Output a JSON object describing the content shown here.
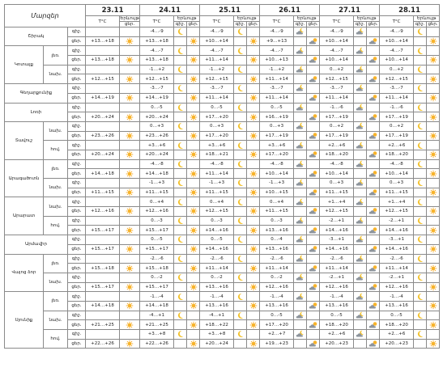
{
  "header": {
    "title": "Մարզեր",
    "dates": [
      "23.11",
      "24.11",
      "25.11",
      "26.11",
      "27.11",
      "28.11"
    ],
    "temp": "T°C",
    "phenomenon": "Երևույթ",
    "night": "գիշ.",
    "day": "ցեր."
  },
  "regions": [
    {
      "name": "Շիրակ",
      "parts": [
        {
          "night": [
            "-4…-9",
            "-4…-9",
            "-4…-9",
            "-4…-9",
            "-4…-9"
          ],
          "day": [
            "+13…+18",
            "+13…+18",
            "+10…+14",
            "+9…+13",
            "+10…+14",
            "+10…+14"
          ]
        }
      ]
    },
    {
      "name": "Կոտայք",
      "parts": [
        {
          "zone": "լեռ.",
          "night": [
            "-4…-7",
            "-4…-7",
            "-4…-7",
            "-4…-7",
            "-4…-7"
          ],
          "day": [
            "+13…+18",
            "+13…+18",
            "+11…+14",
            "+10…+13",
            "+10…+14",
            "+10…+14"
          ]
        },
        {
          "zone": "նախ.",
          "night": [
            "-1…+2",
            "-1…+2",
            "-1…+2",
            "0…+2",
            "0…+2"
          ],
          "day": [
            "+12…+15",
            "+12…+15",
            "+12…+15",
            "+11…+14",
            "+12…+15",
            "+12…+15"
          ]
        }
      ]
    },
    {
      "name": "Գեղարքունիք",
      "parts": [
        {
          "night": [
            "-3…-7",
            "-3…-7",
            "-3…-7",
            "-3…-7",
            "-3…-7"
          ],
          "day": [
            "+14…+19",
            "+14…+19",
            "+11…+14",
            "+11…+14",
            "+11…+14",
            "+11…+14"
          ]
        }
      ]
    },
    {
      "name": "Լոռի",
      "parts": [
        {
          "night": [
            "0…-5",
            "0…-5",
            "0…-5",
            "-1…-6",
            "-1…-6"
          ],
          "day": [
            "+20…+24",
            "+20…+24",
            "+17…+20",
            "+16…+19",
            "+17…+19",
            "+17…+19"
          ]
        }
      ]
    },
    {
      "name": "Տավուշ",
      "parts": [
        {
          "zone": "նախ.",
          "night": [
            "0…+3",
            "0…+3",
            "0…+3",
            "0…+2",
            "0…+2"
          ],
          "day": [
            "+23…+26",
            "+23…+26",
            "+17…+20",
            "+17…+19",
            "+17…+19",
            "+17…+19"
          ]
        },
        {
          "zone": "հով.",
          "night": [
            "+3…+6",
            "+3…+6",
            "+3…+6",
            "+2…+6",
            "+2…+6"
          ],
          "day": [
            "+20…+24",
            "+20…+24",
            "+18…+21",
            "+17…+20",
            "+18…+20",
            "+18…+20"
          ]
        }
      ]
    },
    {
      "name": "Արագածոտն",
      "parts": [
        {
          "zone": "լեռ.",
          "night": [
            "-4…-8",
            "-4…-8",
            "-4…-8",
            "-4…-8",
            "-4…-8"
          ],
          "day": [
            "+14…+18",
            "+14…+18",
            "+11…+14",
            "+10…+14",
            "+10…+14",
            "+10…+14"
          ]
        },
        {
          "zone": "նախ.",
          "night": [
            "-1…+3",
            "-1…+3",
            "-1…+3",
            "0…+3",
            "0…+3"
          ],
          "day": [
            "+11…+15",
            "+11…+15",
            "+11…+15",
            "+10…+15",
            "+11…+15",
            "+11…+15"
          ]
        }
      ]
    },
    {
      "name": "Արարատ",
      "parts": [
        {
          "zone": "նախ.",
          "night": [
            "0…+4",
            "0…+4",
            "0…+4",
            "+1…+4",
            "+1…+4"
          ],
          "day": [
            "+12…+16",
            "+12…+16",
            "+12…+15",
            "+11…+15",
            "+12…+15",
            "+12…+15"
          ]
        },
        {
          "zone": "հով.",
          "night": [
            "0…-3",
            "0…-3",
            "0…-3",
            "-2…+1",
            "-2…+1"
          ],
          "day": [
            "+15…+17",
            "+15…+17",
            "+14…+16",
            "+13…+16",
            "+14…+16",
            "+14…+16"
          ]
        }
      ]
    },
    {
      "name": "Արմավիր",
      "parts": [
        {
          "night": [
            "0…-5",
            "0…-5",
            "0…-4",
            "-3…+1",
            "-3…+1"
          ],
          "day": [
            "+15…+17",
            "+15…+17",
            "+14…+16",
            "+13…+16",
            "+14…+16",
            "+14…+16"
          ]
        }
      ]
    },
    {
      "name": "Վայոց ձոր",
      "parts": [
        {
          "zone": "լեռ.",
          "night": [
            "-2…-6",
            "-2…-6",
            "-2…-6",
            "-2…-6",
            "-2…-6"
          ],
          "day": [
            "+15…+18",
            "+15…+18",
            "+11…+14",
            "+11…+14",
            "+11…+14",
            "+11…+14"
          ]
        },
        {
          "zone": "նախ.",
          "night": [
            "0…-2",
            "0…-2",
            "0…-2",
            "-2…+1",
            "-2…+1"
          ],
          "day": [
            "+15…+17",
            "+15…+17",
            "+13…+16",
            "+12…+16",
            "+12…+16",
            "+12…+16"
          ]
        }
      ]
    },
    {
      "name": "Սյունիք",
      "parts": [
        {
          "zone": "լեռ.",
          "night": [
            "-1…-4",
            "-1…-4",
            "-1…-4",
            "-1…-4",
            "-1…-4"
          ],
          "day": [
            "+14…+18",
            "+14…+18",
            "+13…+16",
            "+13…+16",
            "+13…+16",
            "+13…+16"
          ]
        },
        {
          "zone": "նախ.",
          "night": [
            "-4…+1",
            "-4…+1",
            "0…-5",
            "0…-5",
            "0…-5"
          ],
          "day": [
            "+21…+25",
            "+21…+25",
            "+18…+22",
            "+17…+20",
            "+18…+20",
            "+18…+20"
          ]
        },
        {
          "zone": "հով.",
          "night": [
            "+3…+8",
            "+3…+8",
            "+2…+7",
            "+2…+6",
            "+2…+6"
          ],
          "day": [
            "+22…+26",
            "+22…+26",
            "+20…+24",
            "+19…+23",
            "+20…+23",
            "+20…+23"
          ]
        }
      ]
    }
  ]
}
